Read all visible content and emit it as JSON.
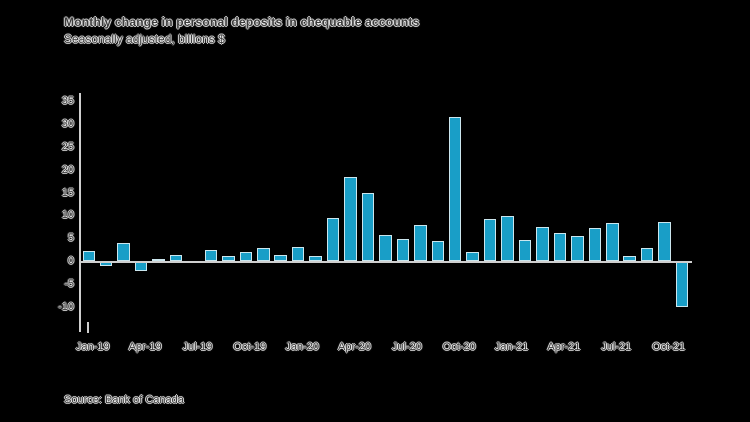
{
  "title": "Monthly change in personal deposits in chequable accounts",
  "subtitle": "Seasonally adjusted, billions $",
  "source": "Source: Bank of Canada",
  "colors": {
    "background": "#000000",
    "bar": "#199ec7",
    "axis": "#cfcfcf",
    "text": "#3c3c3c"
  },
  "chart_data": {
    "type": "bar",
    "x": [
      "Jan-19",
      "Feb-19",
      "Mar-19",
      "Apr-19",
      "May-19",
      "Jun-19",
      "Jul-19",
      "Aug-19",
      "Sep-19",
      "Oct-19",
      "Nov-19",
      "Dec-19",
      "Jan-20",
      "Feb-20",
      "Mar-20",
      "Apr-20",
      "May-20",
      "Jun-20",
      "Jul-20",
      "Aug-20",
      "Sep-20",
      "Oct-20",
      "Nov-20",
      "Dec-20",
      "Jan-21",
      "Feb-21",
      "Mar-21",
      "Apr-21",
      "May-21",
      "Jun-21",
      "Jul-21",
      "Aug-21",
      "Sep-21",
      "Oct-21",
      "Nov-21"
    ],
    "values": [
      2.3,
      -1,
      4,
      -2,
      0.5,
      1.5,
      0.1,
      2.5,
      1.3,
      2.1,
      3,
      1.5,
      3.1,
      1.1,
      9.6,
      18.4,
      15,
      5.7,
      4.9,
      8.1,
      4.4,
      31.7,
      2.1,
      9.2,
      9.9,
      4.7,
      7.6,
      6.2,
      5.6,
      7.4,
      8.5,
      1.2,
      3,
      8.7,
      -10
    ],
    "x_tick_labels": [
      "Jan-19",
      "Apr-19",
      "Jul-19",
      "Oct-19",
      "Jan-20",
      "Apr-20",
      "Jul-20",
      "Oct-20",
      "Jan-21",
      "Apr-21",
      "Jul-21",
      "Oct-21"
    ],
    "y_ticks": [
      35,
      30,
      25,
      20,
      15,
      10,
      5,
      0,
      -5,
      -10
    ],
    "ylim": [
      -10,
      35
    ],
    "title": "Monthly change in personal deposits in chequable accounts",
    "xlabel": "",
    "ylabel": "billions $",
    "grid": false,
    "legend": "none"
  }
}
